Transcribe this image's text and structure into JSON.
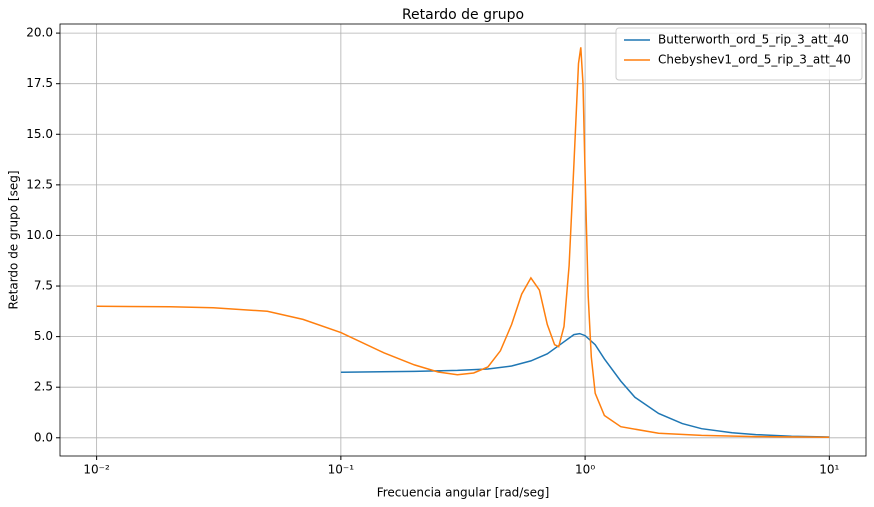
{
  "chart_data": {
    "type": "line",
    "title": "Retardo de grupo",
    "xlabel": "Frecuencia angular [rad/seg]",
    "ylabel": "Retardo de grupo [seg]",
    "xscale": "log",
    "grid": true,
    "legend": "upper right",
    "xlim": [
      0.00708,
      14.13
    ],
    "ylim": [
      -0.9,
      20.45
    ],
    "xticks": [
      {
        "value": 0.01,
        "label": "10⁻²"
      },
      {
        "value": 0.1,
        "label": "10⁻¹"
      },
      {
        "value": 1,
        "label": "10⁰"
      },
      {
        "value": 10,
        "label": "10¹"
      }
    ],
    "yticks": [
      {
        "value": 0,
        "label": "0.0"
      },
      2.5,
      {
        "value": 5,
        "label": "5.0"
      },
      7.5,
      {
        "value": 10,
        "label": "10.0"
      },
      12.5,
      {
        "value": 15,
        "label": "15.0"
      },
      17.5,
      {
        "value": 20,
        "label": "20.0"
      }
    ],
    "series": [
      {
        "name": "Butterworth_ord_5_rip_3_att_40",
        "color": "#1f77b4",
        "x": [
          0.1,
          0.2,
          0.3,
          0.4,
          0.5,
          0.6,
          0.7,
          0.8,
          0.9,
          0.95,
          1.0,
          1.1,
          1.2,
          1.4,
          1.6,
          2.0,
          2.5,
          3,
          4,
          5,
          7,
          10
        ],
        "values": [
          3.24,
          3.28,
          3.33,
          3.4,
          3.55,
          3.8,
          4.15,
          4.65,
          5.1,
          5.15,
          5.05,
          4.6,
          3.9,
          2.8,
          2.0,
          1.2,
          0.7,
          0.45,
          0.25,
          0.16,
          0.08,
          0.04
        ]
      },
      {
        "name": "Chebyshev1_ord_5_rip_3_att_40",
        "color": "#ff7f0e",
        "x": [
          0.01,
          0.02,
          0.03,
          0.05,
          0.07,
          0.1,
          0.15,
          0.2,
          0.25,
          0.3,
          0.35,
          0.4,
          0.45,
          0.5,
          0.55,
          0.6,
          0.65,
          0.7,
          0.75,
          0.78,
          0.82,
          0.86,
          0.9,
          0.94,
          0.96,
          0.98,
          1.0,
          1.03,
          1.06,
          1.1,
          1.2,
          1.4,
          2,
          3,
          5,
          10
        ],
        "values": [
          6.5,
          6.48,
          6.43,
          6.25,
          5.85,
          5.2,
          4.2,
          3.6,
          3.25,
          3.12,
          3.2,
          3.5,
          4.3,
          5.6,
          7.1,
          7.9,
          7.3,
          5.6,
          4.6,
          4.5,
          5.5,
          8.5,
          13.5,
          18.5,
          19.3,
          17.5,
          13,
          7,
          4,
          2.2,
          1.1,
          0.55,
          0.22,
          0.12,
          0.06,
          0.03
        ]
      }
    ]
  }
}
